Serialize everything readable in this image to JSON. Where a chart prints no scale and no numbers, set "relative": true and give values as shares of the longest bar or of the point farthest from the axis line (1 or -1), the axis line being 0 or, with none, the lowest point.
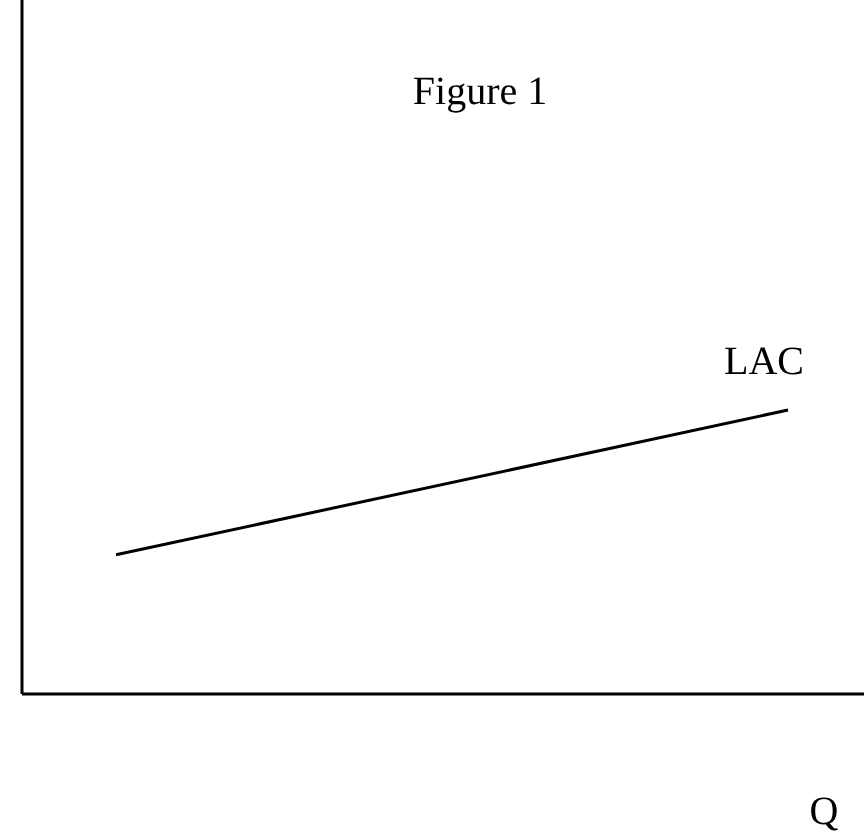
{
  "chart_data": {
    "type": "line",
    "title": "Figure 1",
    "xlabel": "Q",
    "relative": true,
    "categories": [
      null,
      null
    ],
    "series": [
      {
        "name": "LAC",
        "color": "#000000",
        "values": [
          0.49,
          1
        ]
      }
    ],
    "marker": "none",
    "line_style": "solid"
  }
}
